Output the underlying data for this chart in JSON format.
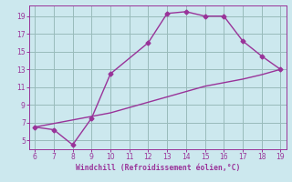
{
  "title": "",
  "xlabel": "Windchill (Refroidissement éolien,°C)",
  "line1_x": [
    6,
    7,
    8,
    9,
    10,
    12,
    13,
    14,
    15,
    16,
    17,
    18,
    19
  ],
  "line1_y": [
    6.5,
    6.2,
    4.5,
    7.5,
    12.5,
    16.0,
    19.3,
    19.5,
    19.0,
    19.0,
    16.2,
    14.5,
    13.0
  ],
  "line2_x": [
    6,
    7,
    8,
    9,
    10,
    11,
    12,
    13,
    14,
    15,
    16,
    17,
    18,
    19
  ],
  "line2_y": [
    6.5,
    6.9,
    7.3,
    7.7,
    8.1,
    8.7,
    9.3,
    9.9,
    10.5,
    11.1,
    11.5,
    11.9,
    12.4,
    13.0
  ],
  "line_color": "#993399",
  "bg_color": "#cce8ee",
  "grid_color": "#99bbbb",
  "tick_color": "#993399",
  "label_color": "#993399",
  "xlim": [
    5.7,
    19.3
  ],
  "ylim": [
    4.0,
    20.2
  ],
  "xticks": [
    6,
    7,
    8,
    9,
    10,
    11,
    12,
    13,
    14,
    15,
    16,
    17,
    18,
    19
  ],
  "yticks": [
    5,
    7,
    9,
    11,
    13,
    15,
    17,
    19
  ],
  "markersize": 2.5,
  "linewidth": 1.0
}
